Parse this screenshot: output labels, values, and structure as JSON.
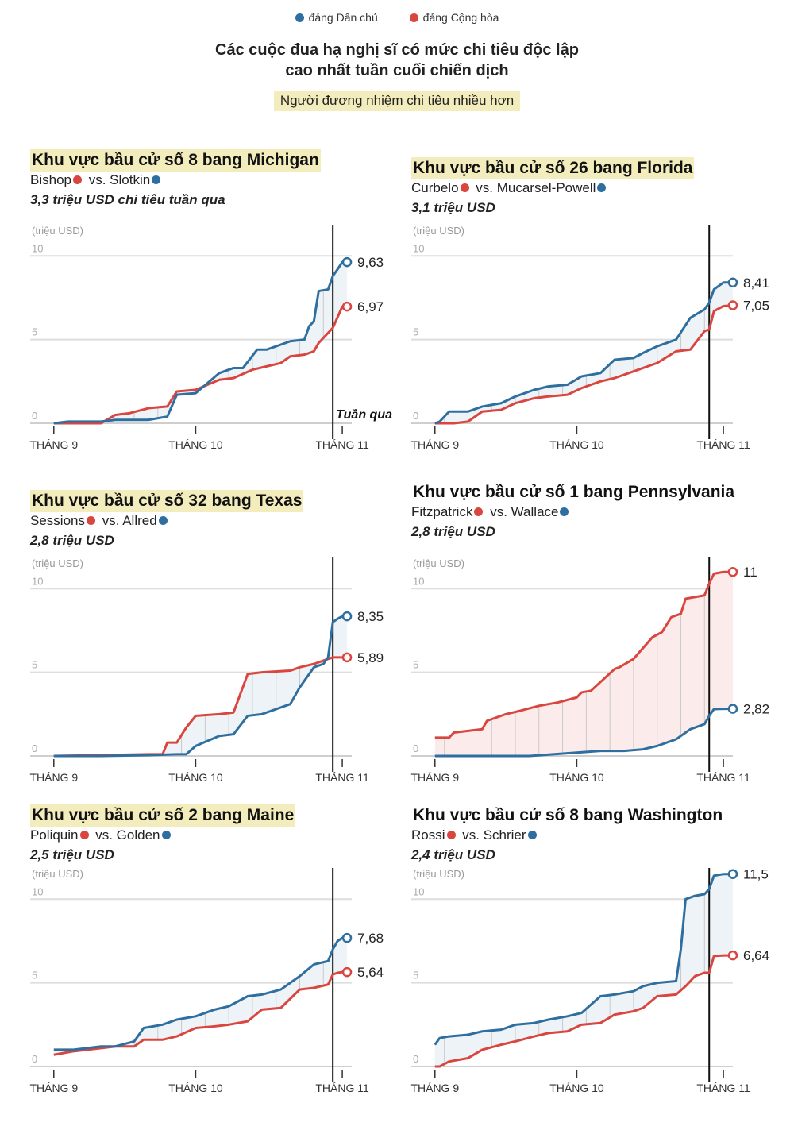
{
  "legend": {
    "dem_label": "đảng Dân chủ",
    "rep_label": "đảng Cộng hòa",
    "dem_color": "#2f6fa0",
    "rep_color": "#d9463f"
  },
  "title_line1": "Các cuộc đua hạ nghị sĩ có mức chi tiêu độc lập",
  "title_line2": "cao nhất tuần cuối chiến dịch",
  "subtitle": "Người đương nhiệm chi tiêu nhiều hơn",
  "axis": {
    "unit_label": "(triệu USD)",
    "month_labels": [
      "THÁNG 9",
      "THÁNG 10",
      "THÁNG 11"
    ],
    "last_week_label": "Tuần qua"
  },
  "panels": [
    {
      "race": "Khu vực bầu cử số 8 bang Michigan",
      "highlight": true,
      "candidate_rep": "Bishop",
      "candidate_dem": "Slotkin",
      "rep_first": true,
      "spend_text": "3,3 triệu USD chi tiêu tuần qua",
      "dem_final_label": "9,63",
      "rep_final_label": "6,97"
    },
    {
      "race": "Khu vực bầu cử số 26 bang Florida",
      "highlight": true,
      "candidate_rep": "Curbelo",
      "candidate_dem": "Mucarsel-Powell",
      "rep_first": true,
      "spend_text": "3,1 triệu USD",
      "dem_final_label": "8,41",
      "rep_final_label": "7,05"
    },
    {
      "race": "Khu vực bầu cử số 32 bang Texas",
      "highlight": true,
      "candidate_rep": "Sessions",
      "candidate_dem": "Allred",
      "rep_first": true,
      "spend_text": "2,8 triệu USD",
      "dem_final_label": "8,35",
      "rep_final_label": "5,89"
    },
    {
      "race": "Khu vực bầu cử số 1 bang Pennsylvania",
      "highlight": false,
      "candidate_rep": "Fitzpatrick",
      "candidate_dem": "Wallace",
      "rep_first": true,
      "spend_text": "2,8 triệu USD",
      "dem_final_label": "2,82",
      "rep_final_label": "11"
    },
    {
      "race": "Khu vực bầu cử số 2 bang Maine",
      "highlight": true,
      "candidate_rep": "Poliquin",
      "candidate_dem": "Golden",
      "rep_first": true,
      "spend_text": "2,5 triệu USD",
      "dem_final_label": "7,68",
      "rep_final_label": "5,64"
    },
    {
      "race": "Khu vực bầu cử số 8 bang Washington",
      "highlight": false,
      "candidate_rep": "Rossi",
      "candidate_dem": "Schrier",
      "rep_first": true,
      "spend_text": "2,4 triệu USD",
      "dem_final_label": "11,5",
      "rep_final_label": "6,64"
    }
  ],
  "chart_data": [
    {
      "type": "line",
      "title": "Khu vực bầu cử số 8 bang Michigan",
      "xlabel": "",
      "ylabel": "(triệu USD)",
      "ylim": [
        0,
        10
      ],
      "yticks": [
        0,
        5,
        10
      ],
      "x_unit": "days since Sep 1",
      "x_ticks": [
        0,
        30,
        61
      ],
      "last_week_x": 59,
      "series": [
        {
          "name": "đảng Dân chủ",
          "x": [
            0,
            3,
            10,
            13,
            20,
            24,
            26,
            30,
            35,
            38,
            40,
            43,
            45,
            50,
            53,
            54,
            55,
            56,
            58,
            59,
            60,
            61,
            62
          ],
          "y": [
            0,
            0.1,
            0.1,
            0.2,
            0.2,
            0.4,
            1.7,
            1.8,
            3.0,
            3.3,
            3.3,
            4.4,
            4.4,
            4.9,
            5.0,
            5.8,
            6.1,
            7.9,
            8.0,
            8.8,
            9.2,
            9.63,
            9.63
          ]
        },
        {
          "name": "đảng Cộng hòa",
          "x": [
            0,
            3,
            10,
            13,
            16,
            20,
            24,
            26,
            30,
            35,
            38,
            42,
            45,
            48,
            50,
            53,
            55,
            56,
            58,
            59,
            61,
            62
          ],
          "y": [
            0,
            0,
            0,
            0.5,
            0.6,
            0.9,
            1.0,
            1.9,
            2.0,
            2.6,
            2.7,
            3.2,
            3.4,
            3.6,
            4.0,
            4.1,
            4.3,
            4.8,
            5.4,
            5.7,
            6.97,
            6.97
          ]
        }
      ]
    },
    {
      "type": "line",
      "title": "Khu vực bầu cử số 26 bang Florida",
      "xlabel": "",
      "ylabel": "(triệu USD)",
      "ylim": [
        0,
        10
      ],
      "yticks": [
        0,
        5,
        10
      ],
      "x_unit": "days since Sep 1",
      "x_ticks": [
        0,
        30,
        61
      ],
      "last_week_x": 58,
      "series": [
        {
          "name": "đảng Dân chủ",
          "x": [
            0,
            1,
            3,
            7,
            10,
            14,
            17,
            21,
            24,
            28,
            31,
            35,
            38,
            42,
            44,
            47,
            51,
            54,
            57,
            58,
            59,
            61,
            63
          ],
          "y": [
            0,
            0.1,
            0.7,
            0.7,
            1.0,
            1.2,
            1.6,
            2.0,
            2.2,
            2.3,
            2.8,
            3.0,
            3.8,
            3.9,
            4.2,
            4.6,
            5.0,
            6.3,
            6.8,
            7.2,
            8.0,
            8.41,
            8.41
          ]
        },
        {
          "name": "đảng Cộng hòa",
          "x": [
            0,
            4,
            7,
            10,
            14,
            17,
            21,
            24,
            28,
            31,
            35,
            38,
            42,
            44,
            47,
            51,
            54,
            57,
            58,
            59,
            61,
            63
          ],
          "y": [
            0,
            0,
            0.1,
            0.7,
            0.8,
            1.2,
            1.5,
            1.6,
            1.7,
            2.1,
            2.5,
            2.7,
            3.1,
            3.3,
            3.6,
            4.3,
            4.4,
            5.5,
            5.6,
            6.7,
            7.0,
            7.05
          ]
        }
      ]
    },
    {
      "type": "line",
      "title": "Khu vực bầu cử số 32 bang Texas",
      "xlabel": "",
      "ylabel": "(triệu USD)",
      "ylim": [
        0,
        10
      ],
      "yticks": [
        0,
        5,
        10
      ],
      "x_unit": "days since Sep 1",
      "x_ticks": [
        0,
        30,
        61
      ],
      "last_week_x": 59,
      "series": [
        {
          "name": "đảng Dân chủ",
          "x": [
            0,
            10,
            20,
            26,
            28,
            30,
            35,
            38,
            41,
            44,
            50,
            52,
            55,
            57,
            58,
            59,
            60,
            61,
            62
          ],
          "y": [
            0,
            0,
            0.05,
            0.1,
            0.1,
            0.6,
            1.2,
            1.3,
            2.4,
            2.5,
            3.1,
            4.1,
            5.3,
            5.5,
            5.9,
            8.0,
            8.2,
            8.35,
            8.35
          ]
        },
        {
          "name": "đảng Cộng hòa",
          "x": [
            0,
            10,
            20,
            23,
            24,
            26,
            28,
            30,
            35,
            38,
            41,
            44,
            50,
            52,
            55,
            57,
            58,
            59,
            61,
            62
          ],
          "y": [
            0,
            0.05,
            0.1,
            0.1,
            0.8,
            0.8,
            1.7,
            2.4,
            2.5,
            2.6,
            4.9,
            5.0,
            5.1,
            5.3,
            5.5,
            5.7,
            5.8,
            5.89,
            5.89,
            5.89
          ]
        }
      ]
    },
    {
      "type": "line",
      "title": "Khu vực bầu cử số 1 bang Pennsylvania",
      "xlabel": "",
      "ylabel": "(triệu USD)",
      "ylim": [
        0,
        10
      ],
      "yticks": [
        0,
        5,
        10
      ],
      "x_unit": "days since Sep 1",
      "x_ticks": [
        0,
        30,
        61
      ],
      "last_week_x": 58,
      "series": [
        {
          "name": "đảng Dân chủ",
          "x": [
            0,
            10,
            20,
            25,
            30,
            35,
            40,
            44,
            47,
            51,
            54,
            57,
            58,
            59,
            61,
            63
          ],
          "y": [
            0,
            0,
            0,
            0.1,
            0.2,
            0.3,
            0.3,
            0.4,
            0.6,
            1.0,
            1.6,
            1.9,
            2.4,
            2.8,
            2.82,
            2.82
          ]
        },
        {
          "name": "đảng Cộng hòa",
          "x": [
            0,
            3,
            4,
            10,
            11,
            15,
            18,
            22,
            26,
            30,
            31,
            33,
            38,
            39,
            42,
            46,
            48,
            50,
            52,
            53,
            57,
            58,
            59,
            61,
            63
          ],
          "y": [
            1.1,
            1.1,
            1.4,
            1.6,
            2.1,
            2.5,
            2.7,
            3.0,
            3.2,
            3.5,
            3.8,
            3.9,
            5.2,
            5.3,
            5.8,
            7.1,
            7.4,
            8.3,
            8.5,
            9.4,
            9.6,
            10.3,
            10.9,
            11.0,
            11.0
          ]
        }
      ]
    },
    {
      "type": "line",
      "title": "Khu vực bầu cử số 2 bang Maine",
      "xlabel": "",
      "ylabel": "(triệu USD)",
      "ylim": [
        0,
        10
      ],
      "yticks": [
        0,
        5,
        10
      ],
      "x_unit": "days since Sep 1",
      "x_ticks": [
        0,
        30,
        61
      ],
      "last_week_x": 59,
      "series": [
        {
          "name": "đảng Dân chủ",
          "x": [
            0,
            4,
            10,
            13,
            17,
            19,
            23,
            26,
            30,
            34,
            37,
            41,
            44,
            48,
            52,
            55,
            58,
            59,
            60,
            61,
            62
          ],
          "y": [
            1.0,
            1.0,
            1.2,
            1.2,
            1.5,
            2.3,
            2.5,
            2.8,
            3.0,
            3.4,
            3.6,
            4.2,
            4.3,
            4.6,
            5.4,
            6.1,
            6.3,
            7.0,
            7.5,
            7.68,
            7.68
          ]
        },
        {
          "name": "đảng Cộng hòa",
          "x": [
            0,
            4,
            10,
            13,
            17,
            19,
            23,
            26,
            30,
            34,
            37,
            41,
            44,
            48,
            52,
            55,
            58,
            59,
            60,
            61,
            62
          ],
          "y": [
            0.7,
            0.9,
            1.1,
            1.2,
            1.2,
            1.6,
            1.6,
            1.8,
            2.3,
            2.4,
            2.5,
            2.7,
            3.4,
            3.5,
            4.6,
            4.7,
            4.9,
            5.5,
            5.6,
            5.64,
            5.64
          ]
        }
      ]
    },
    {
      "type": "line",
      "title": "Khu vực bầu cử số 8 bang Washington",
      "xlabel": "",
      "ylabel": "(triệu USD)",
      "ylim": [
        0,
        10
      ],
      "yticks": [
        0,
        5,
        10
      ],
      "x_unit": "days since Sep 1",
      "x_ticks": [
        0,
        30,
        61
      ],
      "last_week_x": 58,
      "series": [
        {
          "name": "đảng Dân chủ",
          "x": [
            0,
            1,
            3,
            7,
            10,
            14,
            17,
            21,
            24,
            28,
            31,
            35,
            38,
            42,
            44,
            47,
            51,
            52,
            53,
            55,
            57,
            58,
            59,
            61,
            63
          ],
          "y": [
            1.3,
            1.7,
            1.8,
            1.9,
            2.1,
            2.2,
            2.5,
            2.6,
            2.8,
            3.0,
            3.2,
            4.2,
            4.3,
            4.5,
            4.8,
            5.0,
            5.1,
            7.0,
            10.0,
            10.2,
            10.3,
            10.6,
            11.4,
            11.5,
            11.5
          ]
        },
        {
          "name": "đảng Cộng hòa",
          "x": [
            0,
            1,
            3,
            7,
            10,
            14,
            17,
            21,
            24,
            28,
            31,
            35,
            38,
            42,
            44,
            47,
            51,
            53,
            55,
            57,
            58,
            59,
            61,
            63
          ],
          "y": [
            0,
            0,
            0.3,
            0.5,
            1.0,
            1.3,
            1.5,
            1.8,
            2.0,
            2.1,
            2.5,
            2.6,
            3.1,
            3.3,
            3.5,
            4.2,
            4.3,
            4.8,
            5.4,
            5.6,
            5.6,
            6.6,
            6.64,
            6.64
          ]
        }
      ]
    }
  ]
}
